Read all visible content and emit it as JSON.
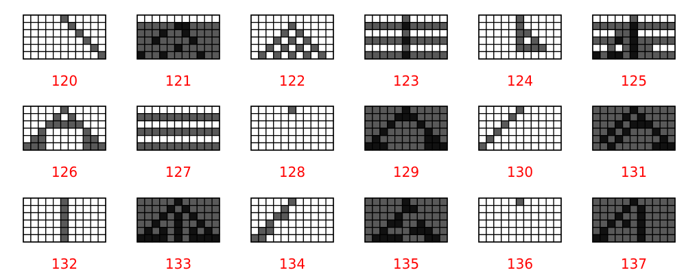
{
  "colors": {
    "background": "#ffffff",
    "gridline": "#000000",
    "label": "#ff0000",
    "cell_values": [
      "#ffffff",
      "#595959",
      "#111111"
    ]
  },
  "grid": {
    "rows": 6,
    "cols": 11
  },
  "panels": [
    {
      "label": "120",
      "cells": [
        [
          0,
          0,
          0,
          0,
          0,
          1,
          0,
          0,
          0,
          0,
          0
        ],
        [
          0,
          0,
          0,
          0,
          0,
          0,
          1,
          0,
          0,
          0,
          0
        ],
        [
          0,
          0,
          0,
          0,
          0,
          0,
          0,
          1,
          0,
          0,
          0
        ],
        [
          0,
          0,
          0,
          0,
          0,
          0,
          0,
          0,
          1,
          0,
          0
        ],
        [
          0,
          0,
          0,
          0,
          0,
          0,
          0,
          0,
          0,
          1,
          0
        ],
        [
          0,
          0,
          0,
          0,
          0,
          0,
          0,
          0,
          0,
          0,
          1
        ]
      ]
    },
    {
      "label": "121",
      "cells": [
        [
          0,
          0,
          0,
          0,
          0,
          0,
          0,
          0,
          0,
          0,
          0
        ],
        [
          1,
          1,
          1,
          1,
          1,
          2,
          2,
          1,
          1,
          1,
          1
        ],
        [
          1,
          1,
          1,
          2,
          1,
          1,
          2,
          1,
          1,
          1,
          1
        ],
        [
          1,
          1,
          2,
          1,
          1,
          1,
          1,
          2,
          1,
          1,
          1
        ],
        [
          1,
          1,
          1,
          1,
          1,
          2,
          1,
          1,
          1,
          1,
          1
        ],
        [
          2,
          1,
          1,
          2,
          1,
          1,
          1,
          1,
          2,
          1,
          1
        ]
      ]
    },
    {
      "label": "122",
      "cells": [
        [
          0,
          0,
          0,
          0,
          0,
          0,
          0,
          0,
          0,
          0,
          0
        ],
        [
          0,
          0,
          0,
          0,
          0,
          1,
          0,
          0,
          0,
          0,
          0
        ],
        [
          0,
          0,
          0,
          0,
          1,
          0,
          1,
          0,
          0,
          0,
          0
        ],
        [
          0,
          0,
          0,
          1,
          0,
          1,
          0,
          1,
          0,
          0,
          0
        ],
        [
          0,
          0,
          1,
          0,
          1,
          0,
          1,
          0,
          1,
          0,
          0
        ],
        [
          0,
          1,
          0,
          1,
          0,
          1,
          0,
          1,
          0,
          1,
          0
        ]
      ]
    },
    {
      "label": "123",
      "cells": [
        [
          0,
          0,
          0,
          0,
          0,
          1,
          0,
          0,
          0,
          0,
          0
        ],
        [
          1,
          1,
          1,
          1,
          1,
          2,
          1,
          1,
          1,
          1,
          1
        ],
        [
          0,
          0,
          0,
          0,
          0,
          1,
          0,
          0,
          0,
          0,
          0
        ],
        [
          1,
          1,
          1,
          1,
          1,
          2,
          1,
          1,
          1,
          1,
          1
        ],
        [
          0,
          0,
          0,
          0,
          0,
          1,
          0,
          0,
          0,
          0,
          0
        ],
        [
          1,
          1,
          1,
          1,
          1,
          2,
          1,
          1,
          1,
          1,
          1
        ]
      ]
    },
    {
      "label": "124",
      "cells": [
        [
          0,
          0,
          0,
          0,
          0,
          1,
          0,
          0,
          0,
          0,
          0
        ],
        [
          0,
          0,
          0,
          0,
          0,
          1,
          0,
          0,
          0,
          0,
          0
        ],
        [
          0,
          0,
          0,
          0,
          0,
          1,
          1,
          0,
          0,
          0,
          0
        ],
        [
          0,
          0,
          0,
          0,
          0,
          1,
          0,
          1,
          0,
          0,
          0
        ],
        [
          0,
          0,
          0,
          0,
          0,
          1,
          1,
          1,
          1,
          0,
          0
        ],
        [
          0,
          0,
          0,
          0,
          0,
          0,
          0,
          0,
          0,
          0,
          0
        ]
      ]
    },
    {
      "label": "125",
      "cells": [
        [
          0,
          0,
          0,
          0,
          0,
          1,
          0,
          0,
          0,
          0,
          0
        ],
        [
          1,
          1,
          1,
          1,
          1,
          2,
          1,
          1,
          1,
          1,
          1
        ],
        [
          0,
          0,
          0,
          1,
          1,
          2,
          0,
          0,
          0,
          0,
          0
        ],
        [
          1,
          1,
          1,
          2,
          1,
          2,
          1,
          1,
          1,
          1,
          1
        ],
        [
          0,
          0,
          1,
          0,
          1,
          2,
          1,
          1,
          0,
          0,
          0
        ],
        [
          2,
          1,
          2,
          2,
          1,
          2,
          1,
          1,
          1,
          1,
          1
        ]
      ]
    },
    {
      "label": "126",
      "cells": [
        [
          0,
          0,
          0,
          0,
          0,
          1,
          0,
          0,
          0,
          0,
          0
        ],
        [
          0,
          0,
          0,
          0,
          1,
          0,
          1,
          0,
          0,
          0,
          0
        ],
        [
          0,
          0,
          0,
          1,
          1,
          1,
          1,
          1,
          0,
          0,
          0
        ],
        [
          0,
          0,
          1,
          0,
          0,
          0,
          0,
          0,
          1,
          0,
          0
        ],
        [
          0,
          1,
          1,
          0,
          0,
          0,
          0,
          0,
          1,
          1,
          0
        ],
        [
          1,
          1,
          1,
          0,
          0,
          0,
          0,
          0,
          1,
          1,
          1
        ]
      ]
    },
    {
      "label": "127",
      "cells": [
        [
          0,
          0,
          0,
          0,
          0,
          0,
          0,
          0,
          0,
          0,
          0
        ],
        [
          1,
          1,
          1,
          1,
          1,
          1,
          1,
          1,
          1,
          1,
          1
        ],
        [
          0,
          0,
          0,
          0,
          0,
          0,
          0,
          0,
          0,
          0,
          0
        ],
        [
          1,
          1,
          1,
          1,
          1,
          1,
          1,
          1,
          1,
          1,
          1
        ],
        [
          0,
          0,
          0,
          0,
          0,
          0,
          0,
          0,
          0,
          0,
          0
        ],
        [
          1,
          1,
          1,
          1,
          1,
          1,
          1,
          1,
          1,
          1,
          1
        ]
      ]
    },
    {
      "label": "128",
      "cells": [
        [
          0,
          0,
          0,
          0,
          0,
          1,
          0,
          0,
          0,
          0,
          0
        ],
        [
          0,
          0,
          0,
          0,
          0,
          0,
          0,
          0,
          0,
          0,
          0
        ],
        [
          0,
          0,
          0,
          0,
          0,
          0,
          0,
          0,
          0,
          0,
          0
        ],
        [
          0,
          0,
          0,
          0,
          0,
          0,
          0,
          0,
          0,
          0,
          0
        ],
        [
          0,
          0,
          0,
          0,
          0,
          0,
          0,
          0,
          0,
          0,
          0
        ],
        [
          0,
          0,
          0,
          0,
          0,
          0,
          0,
          0,
          0,
          0,
          0
        ]
      ]
    },
    {
      "label": "129",
      "cells": [
        [
          1,
          1,
          1,
          1,
          1,
          2,
          1,
          1,
          1,
          1,
          1
        ],
        [
          1,
          1,
          1,
          1,
          2,
          2,
          2,
          1,
          1,
          1,
          1
        ],
        [
          1,
          1,
          1,
          2,
          1,
          1,
          1,
          2,
          1,
          1,
          1
        ],
        [
          1,
          1,
          2,
          1,
          1,
          1,
          1,
          1,
          2,
          1,
          1
        ],
        [
          1,
          2,
          1,
          1,
          1,
          1,
          1,
          1,
          2,
          2,
          1
        ],
        [
          2,
          2,
          2,
          1,
          1,
          1,
          1,
          1,
          2,
          2,
          2
        ]
      ]
    },
    {
      "label": "130",
      "cells": [
        [
          0,
          0,
          0,
          0,
          0,
          1,
          0,
          0,
          0,
          0,
          0
        ],
        [
          0,
          0,
          0,
          0,
          1,
          0,
          0,
          0,
          0,
          0,
          0
        ],
        [
          0,
          0,
          0,
          1,
          0,
          0,
          0,
          0,
          0,
          0,
          0
        ],
        [
          0,
          0,
          1,
          0,
          0,
          0,
          0,
          0,
          0,
          0,
          0
        ],
        [
          0,
          1,
          0,
          0,
          0,
          0,
          0,
          0,
          0,
          0,
          0
        ],
        [
          1,
          0,
          0,
          0,
          0,
          0,
          0,
          0,
          0,
          0,
          0
        ]
      ]
    },
    {
      "label": "131",
      "cells": [
        [
          1,
          1,
          1,
          1,
          1,
          2,
          1,
          1,
          1,
          1,
          1
        ],
        [
          1,
          1,
          1,
          1,
          2,
          1,
          2,
          1,
          1,
          1,
          1
        ],
        [
          1,
          1,
          1,
          2,
          1,
          2,
          2,
          2,
          1,
          1,
          1
        ],
        [
          1,
          1,
          2,
          1,
          2,
          1,
          1,
          1,
          2,
          1,
          1
        ],
        [
          1,
          2,
          1,
          2,
          1,
          1,
          1,
          1,
          1,
          2,
          1
        ],
        [
          1,
          1,
          2,
          1,
          1,
          1,
          1,
          1,
          2,
          2,
          2
        ]
      ]
    },
    {
      "label": "132",
      "cells": [
        [
          0,
          0,
          0,
          0,
          0,
          1,
          0,
          0,
          0,
          0,
          0
        ],
        [
          0,
          0,
          0,
          0,
          0,
          1,
          0,
          0,
          0,
          0,
          0
        ],
        [
          0,
          0,
          0,
          0,
          0,
          1,
          0,
          0,
          0,
          0,
          0
        ],
        [
          0,
          0,
          0,
          0,
          0,
          1,
          0,
          0,
          0,
          0,
          0
        ],
        [
          0,
          0,
          0,
          0,
          0,
          1,
          0,
          0,
          0,
          0,
          0
        ],
        [
          0,
          0,
          0,
          0,
          0,
          1,
          0,
          0,
          0,
          0,
          0
        ]
      ]
    },
    {
      "label": "133",
      "cells": [
        [
          1,
          1,
          1,
          1,
          1,
          2,
          1,
          1,
          1,
          1,
          1
        ],
        [
          1,
          1,
          1,
          1,
          2,
          1,
          2,
          1,
          1,
          1,
          1
        ],
        [
          1,
          1,
          1,
          2,
          1,
          2,
          1,
          2,
          1,
          1,
          1
        ],
        [
          1,
          1,
          2,
          1,
          1,
          2,
          1,
          1,
          2,
          1,
          1
        ],
        [
          1,
          2,
          1,
          2,
          1,
          2,
          1,
          2,
          1,
          2,
          1
        ],
        [
          2,
          2,
          2,
          2,
          1,
          2,
          1,
          2,
          2,
          2,
          2
        ]
      ]
    },
    {
      "label": "134",
      "cells": [
        [
          0,
          0,
          0,
          0,
          0,
          1,
          0,
          0,
          0,
          0,
          0
        ],
        [
          0,
          0,
          0,
          0,
          1,
          0,
          0,
          0,
          0,
          0,
          0
        ],
        [
          0,
          0,
          0,
          1,
          1,
          0,
          0,
          0,
          0,
          0,
          0
        ],
        [
          0,
          0,
          1,
          0,
          0,
          0,
          0,
          0,
          0,
          0,
          0
        ],
        [
          0,
          1,
          1,
          0,
          0,
          0,
          0,
          0,
          0,
          0,
          0
        ],
        [
          1,
          1,
          0,
          0,
          0,
          0,
          0,
          0,
          0,
          0,
          0
        ]
      ]
    },
    {
      "label": "135",
      "cells": [
        [
          1,
          1,
          1,
          1,
          1,
          2,
          1,
          1,
          1,
          1,
          1
        ],
        [
          1,
          1,
          1,
          1,
          1,
          2,
          2,
          1,
          1,
          1,
          1
        ],
        [
          1,
          1,
          1,
          1,
          2,
          1,
          1,
          1,
          1,
          1,
          1
        ],
        [
          1,
          1,
          1,
          2,
          2,
          1,
          1,
          2,
          1,
          1,
          1
        ],
        [
          1,
          1,
          2,
          1,
          1,
          1,
          2,
          2,
          2,
          1,
          1
        ],
        [
          1,
          2,
          2,
          2,
          2,
          1,
          1,
          1,
          2,
          2,
          1
        ]
      ]
    },
    {
      "label": "136",
      "cells": [
        [
          0,
          0,
          0,
          0,
          0,
          1,
          0,
          0,
          0,
          0,
          0
        ],
        [
          0,
          0,
          0,
          0,
          0,
          0,
          0,
          0,
          0,
          0,
          0
        ],
        [
          0,
          0,
          0,
          0,
          0,
          0,
          0,
          0,
          0,
          0,
          0
        ],
        [
          0,
          0,
          0,
          0,
          0,
          0,
          0,
          0,
          0,
          0,
          0
        ],
        [
          0,
          0,
          0,
          0,
          0,
          0,
          0,
          0,
          0,
          0,
          0
        ],
        [
          0,
          0,
          0,
          0,
          0,
          0,
          0,
          0,
          0,
          0,
          0
        ]
      ]
    },
    {
      "label": "137",
      "cells": [
        [
          1,
          1,
          1,
          1,
          1,
          2,
          1,
          1,
          1,
          1,
          1
        ],
        [
          1,
          1,
          1,
          1,
          2,
          1,
          2,
          1,
          1,
          1,
          1
        ],
        [
          1,
          1,
          1,
          2,
          1,
          1,
          2,
          1,
          1,
          1,
          1
        ],
        [
          1,
          1,
          2,
          1,
          2,
          1,
          2,
          1,
          1,
          1,
          1
        ],
        [
          1,
          2,
          1,
          1,
          1,
          1,
          2,
          1,
          1,
          1,
          1
        ],
        [
          2,
          2,
          1,
          1,
          1,
          1,
          2,
          1,
          1,
          1,
          1
        ]
      ]
    }
  ]
}
